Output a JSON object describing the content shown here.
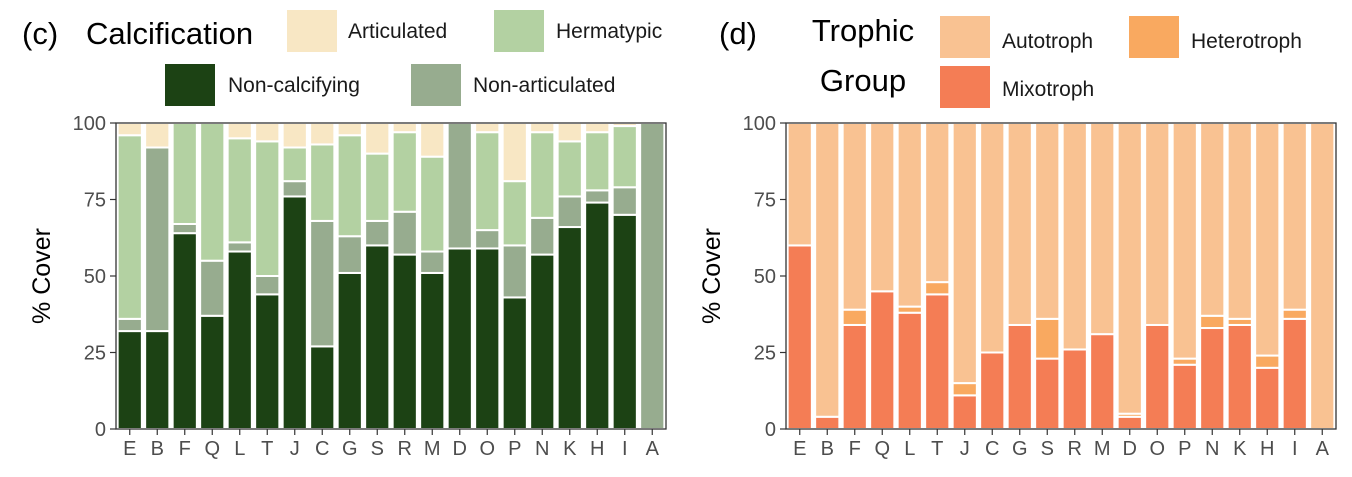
{
  "chart_data": [
    {
      "type": "bar",
      "panel_label": "(c)",
      "legend_title": "Calcification",
      "ylabel": "% Cover",
      "xlabel": "",
      "ylim": [
        0,
        100
      ],
      "yticks": [
        "0",
        "25",
        "50",
        "75",
        "100"
      ],
      "categories": [
        "E",
        "B",
        "F",
        "Q",
        "L",
        "T",
        "J",
        "C",
        "G",
        "S",
        "R",
        "M",
        "D",
        "O",
        "P",
        "N",
        "K",
        "H",
        "I",
        "A"
      ],
      "series": [
        {
          "name": "Non-calcifying",
          "color": "#1c4214",
          "values": [
            32,
            32,
            64,
            37,
            58,
            44,
            76,
            27,
            51,
            60,
            57,
            51,
            59,
            59,
            43,
            57,
            66,
            74,
            70,
            0
          ]
        },
        {
          "name": "Non-articulated",
          "color": "#97ac8f",
          "values": [
            4,
            60,
            3,
            18,
            3,
            6,
            5,
            41,
            12,
            8,
            14,
            7,
            41,
            6,
            17,
            12,
            10,
            4,
            9,
            100
          ]
        },
        {
          "name": "Hermatypic",
          "color": "#b3d1a2",
          "values": [
            60,
            0,
            33,
            45,
            34,
            44,
            11,
            25,
            33,
            22,
            26,
            31,
            0,
            32,
            21,
            28,
            18,
            19,
            20,
            0
          ]
        },
        {
          "name": "Articulated",
          "color": "#f8e7c4",
          "values": [
            4,
            8,
            0,
            0,
            5,
            6,
            8,
            7,
            4,
            10,
            3,
            11,
            0,
            3,
            19,
            3,
            6,
            3,
            1,
            0
          ]
        }
      ]
    },
    {
      "type": "bar",
      "panel_label": "(d)",
      "legend_title": [
        "Trophic",
        "Group"
      ],
      "ylabel": "% Cover",
      "xlabel": "",
      "ylim": [
        0,
        100
      ],
      "yticks": [
        "0",
        "25",
        "50",
        "75",
        "100"
      ],
      "categories": [
        "E",
        "B",
        "F",
        "Q",
        "L",
        "T",
        "J",
        "C",
        "G",
        "S",
        "R",
        "M",
        "D",
        "O",
        "P",
        "N",
        "K",
        "H",
        "I",
        "A"
      ],
      "series": [
        {
          "name": "Mixotroph",
          "color": "#f47d55",
          "values": [
            60,
            4,
            34,
            45,
            38,
            44,
            11,
            25,
            34,
            23,
            26,
            31,
            4,
            34,
            21,
            33,
            34,
            20,
            36,
            0
          ]
        },
        {
          "name": "Heterotroph",
          "color": "#f9a960",
          "values": [
            0,
            0,
            5,
            0,
            2,
            4,
            4,
            0,
            0,
            13,
            0,
            0,
            1,
            0,
            2,
            4,
            2,
            4,
            3,
            0
          ]
        },
        {
          "name": "Autotroph",
          "color": "#f9c292",
          "values": [
            40,
            96,
            61,
            55,
            60,
            52,
            85,
            75,
            66,
            64,
            74,
            69,
            95,
            66,
            77,
            63,
            64,
            76,
            61,
            100
          ]
        }
      ]
    }
  ]
}
